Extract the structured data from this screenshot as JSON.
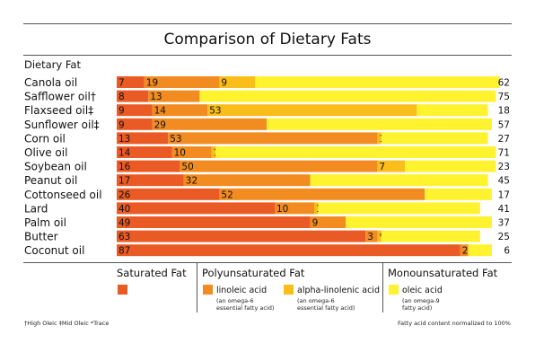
{
  "colors": {
    "saturated": "#ea5a24",
    "linoleic": "#f28c20",
    "alpha_linolenic": "#fbbd1a",
    "oleic": "#fff22e",
    "text": "#111111"
  },
  "chart_data": {
    "type": "bar",
    "stacked": true,
    "title": "Comparison of Dietary Fats",
    "ylabel": "Dietary Fat",
    "xlim": [
      0,
      100
    ],
    "categories": [
      "Canola oil",
      "Safflower oil†",
      "Flaxseed oil‡",
      "Sunflower oil‡",
      "Corn oil",
      "Olive oil",
      "Soybean oil",
      "Peanut oil",
      "Cottonseed oil",
      "Lard",
      "Palm oil",
      "Butter",
      "Coconut oil"
    ],
    "series": [
      {
        "name": "Saturated Fat",
        "color_key": "saturated",
        "values": [
          7,
          8,
          9,
          9,
          13,
          14,
          16,
          17,
          26,
          40,
          49,
          63,
          87
        ]
      },
      {
        "name": "linoleic acid",
        "color_key": "linoleic",
        "values": [
          19,
          13,
          14,
          29,
          53,
          10,
          50,
          32,
          52,
          10,
          9,
          3,
          2
        ]
      },
      {
        "name": "alpha-linolenic acid",
        "color_key": "alpha_linolenic",
        "values": [
          9,
          null,
          53,
          null,
          1,
          1,
          7,
          null,
          null,
          1,
          null,
          1,
          null
        ]
      },
      {
        "name": "oleic acid",
        "color_key": "oleic",
        "values": [
          62,
          75,
          18,
          57,
          27,
          71,
          23,
          45,
          17,
          41,
          37,
          25,
          6
        ]
      }
    ],
    "labels": [
      [
        "7",
        "19",
        "9",
        "62"
      ],
      [
        "8",
        "13",
        "*",
        "75"
      ],
      [
        "9",
        "14",
        "53",
        "18"
      ],
      [
        "9",
        "29",
        "*",
        "57"
      ],
      [
        "13",
        "53",
        "1",
        "27"
      ],
      [
        "14",
        "10",
        "1",
        "71"
      ],
      [
        "16",
        "50",
        "7",
        "23"
      ],
      [
        "17",
        "32",
        "",
        "45"
      ],
      [
        "26",
        "52",
        "*",
        "17"
      ],
      [
        "40",
        "10",
        "1",
        "41"
      ],
      [
        "49",
        "9",
        "*",
        "37"
      ],
      [
        "63",
        "3",
        "*",
        "25"
      ],
      [
        "87",
        "2",
        "",
        "6"
      ]
    ]
  },
  "legend": {
    "saturated": "Saturated Fat",
    "poly": "Polyunsaturated Fat",
    "mono": "Monounsaturated Fat",
    "linoleic": "linoleic acid",
    "linoleic_note": "(an omega-6\nessential fatty acid)",
    "alpha": "alpha-linolenic acid",
    "alpha_note": "(an omega-6\nessential fatty acid)",
    "oleic": "oleic acid",
    "oleic_note": "(an omega-9\nfatty acid)"
  },
  "footnotes": {
    "left": "†High Oleic  ‡Mid Oleic  *Trace",
    "right": "Fatty acid content normalized to 100%"
  }
}
